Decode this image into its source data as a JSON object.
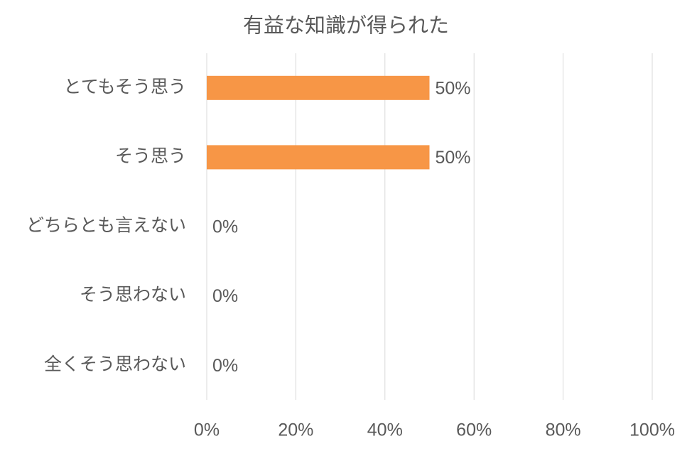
{
  "chart_data": {
    "type": "bar",
    "orientation": "horizontal",
    "title": "有益な知識が得られた",
    "categories": [
      "とてもそう思う",
      "そう思う",
      "どちらとも言えない",
      "そう思わない",
      "全くそう思わない"
    ],
    "values": [
      50,
      50,
      0,
      0,
      0
    ],
    "value_labels": [
      "50%",
      "50%",
      "0%",
      "0%",
      "0%"
    ],
    "color": "#f79646",
    "xlim": [
      0,
      100
    ],
    "xticks": [
      {
        "value": 0,
        "label": "0%"
      },
      {
        "value": 20,
        "label": "20%"
      },
      {
        "value": 40,
        "label": "40%"
      },
      {
        "value": 60,
        "label": "60%"
      },
      {
        "value": 80,
        "label": "80%"
      },
      {
        "value": 100,
        "label": "100%"
      }
    ],
    "grid": true
  }
}
